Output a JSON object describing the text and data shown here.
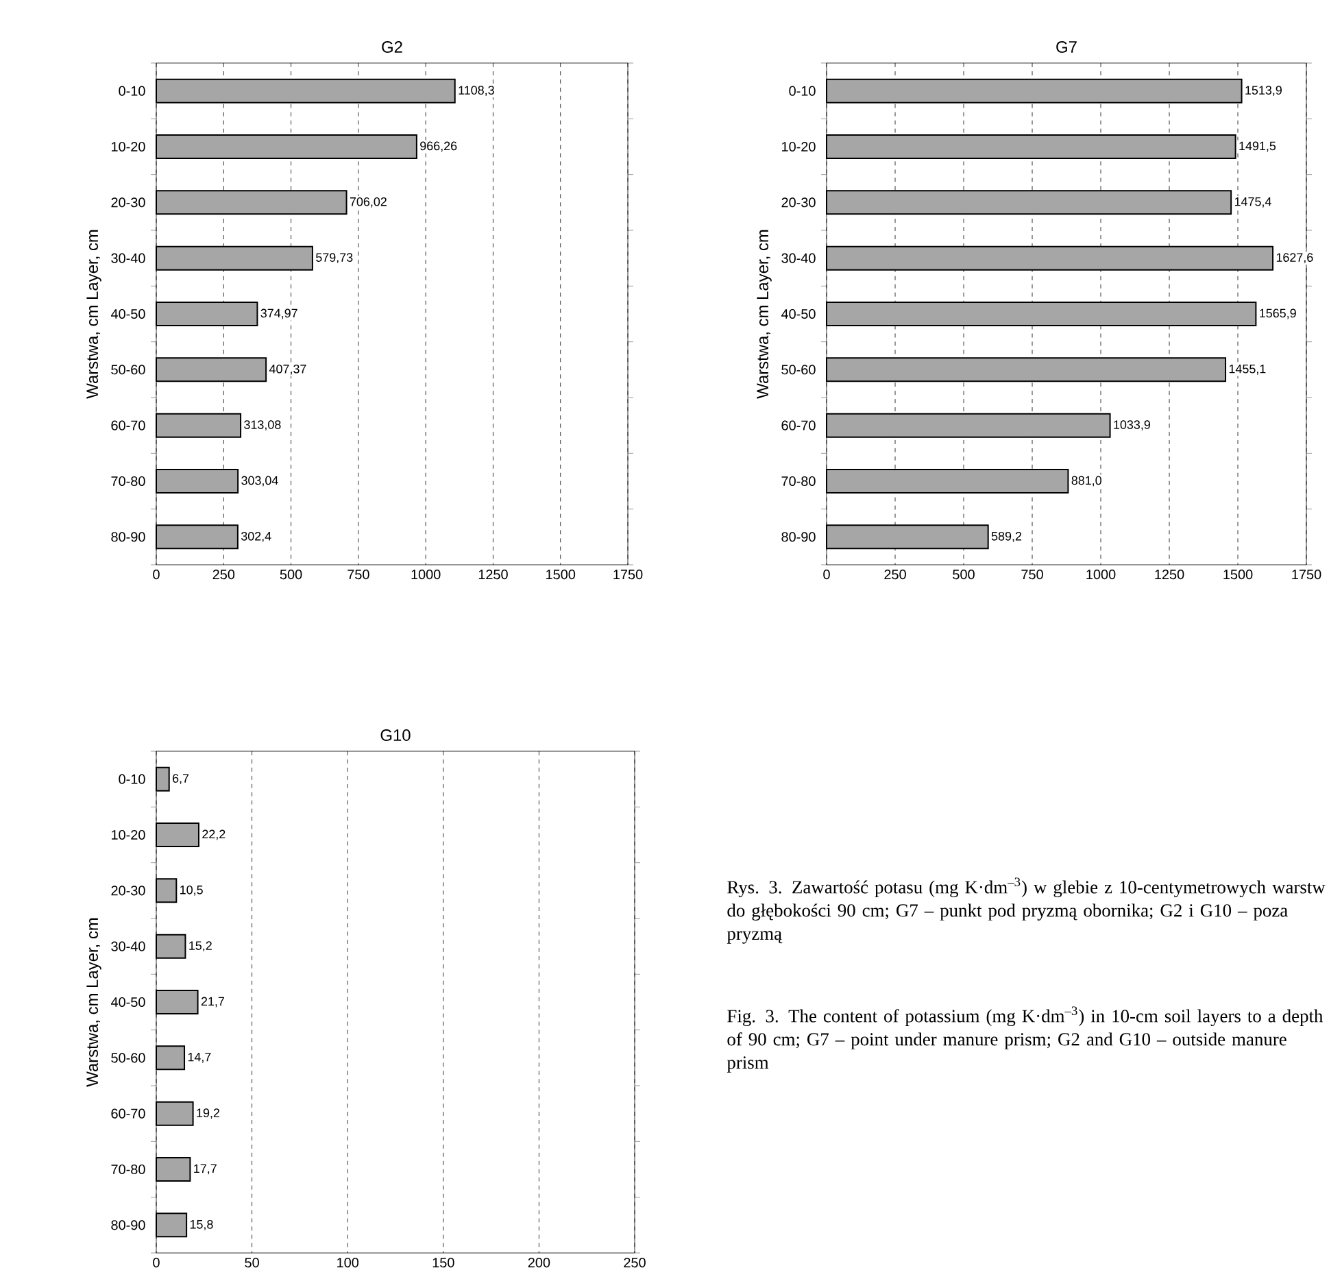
{
  "chart_data": [
    {
      "type": "bar",
      "orientation": "horizontal",
      "title": "G2",
      "ylabel": "Warstwa, cm   Layer, cm",
      "categories": [
        "0-10",
        "10-20",
        "20-30",
        "30-40",
        "40-50",
        "50-60",
        "60-70",
        "70-80",
        "80-90"
      ],
      "values": [
        1108.3,
        966.26,
        706.02,
        579.73,
        374.97,
        407.37,
        313.08,
        303.04,
        302.4
      ],
      "value_labels": [
        "1108,3",
        "966,26",
        "706,02",
        "579,73",
        "374,97",
        "407,37",
        "313,08",
        "303,04",
        "302,4"
      ],
      "color": "#a6a6a6",
      "xlim": [
        0,
        1750
      ],
      "xticks": [
        0,
        250,
        500,
        750,
        1000,
        1250,
        1500,
        1750
      ],
      "grid": "x"
    },
    {
      "type": "bar",
      "orientation": "horizontal",
      "title": "G7",
      "ylabel": "Warstwa, cm   Layer, cm",
      "categories": [
        "0-10",
        "10-20",
        "20-30",
        "30-40",
        "40-50",
        "50-60",
        "60-70",
        "70-80",
        "80-90"
      ],
      "values": [
        1513.9,
        1491.5,
        1475.4,
        1627.6,
        1565.9,
        1455.1,
        1033.9,
        881.0,
        589.2
      ],
      "value_labels": [
        "1513,9",
        "1491,5",
        "1475,4",
        "1627,6",
        "1565,9",
        "1455,1",
        "1033,9",
        "881,0",
        "589,2"
      ],
      "color": "#a6a6a6",
      "xlim": [
        0,
        1750
      ],
      "xticks": [
        0,
        250,
        500,
        750,
        1000,
        1250,
        1500,
        1750
      ],
      "grid": "x"
    },
    {
      "type": "bar",
      "orientation": "horizontal",
      "title": "G10",
      "ylabel": "Warstwa, cm   Layer, cm",
      "categories": [
        "0-10",
        "10-20",
        "20-30",
        "30-40",
        "40-50",
        "50-60",
        "60-70",
        "70-80",
        "80-90"
      ],
      "values": [
        6.7,
        22.2,
        10.5,
        15.2,
        21.7,
        14.7,
        19.2,
        17.7,
        15.8
      ],
      "value_labels": [
        "6,7",
        "22,2",
        "10,5",
        "15,2",
        "21,7",
        "14,7",
        "19,2",
        "17,7",
        "15,8"
      ],
      "color": "#a6a6a6",
      "xlim": [
        0,
        250
      ],
      "xticks": [
        0,
        50,
        100,
        150,
        200,
        250
      ],
      "grid": "x"
    },
    {
      "type": "other",
      "annotations": [
        "Rys. 3. Zawartość potasu (mg K·dm$^{–3}$) w glebie z 10-centymetrowych warstw do głębokości 90 cm; G7 – punkt pod pryzmą obornika; G2 i G10 – poza pryzmą",
        "Fig. 3. The content of potassium (mg K·dm$^{–3}$) in 10-cm soil layers to a depth of 90 cm; G7 – point under manure prism; G2 and G10 – outside manure prism"
      ]
    }
  ]
}
